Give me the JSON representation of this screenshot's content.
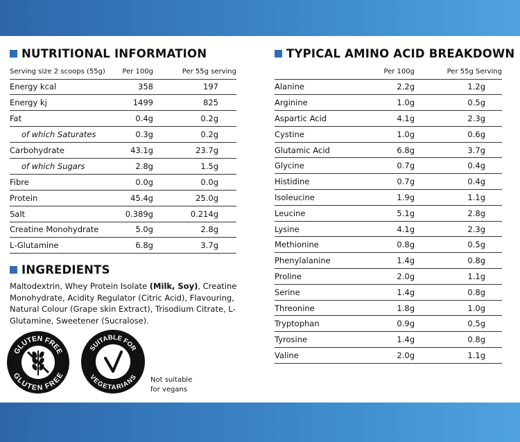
{
  "nutrition": {
    "title": "NUTRITIONAL INFORMATION",
    "header": {
      "serving": "Serving size 2 scoops (55g)",
      "per100": "Per 100g",
      "perServing": "Per 55g serving"
    },
    "rows": [
      {
        "label": "Energy kcal",
        "per100": "358",
        "perServing": "197",
        "sub": false
      },
      {
        "label": "Energy kj",
        "per100": "1499",
        "perServing": "825",
        "sub": false
      },
      {
        "label": "Fat",
        "per100": "0.4g",
        "perServing": "0.2g",
        "sub": false
      },
      {
        "label": "of which Saturates",
        "per100": "0.3g",
        "perServing": "0.2g",
        "sub": true
      },
      {
        "label": "Carbohydrate",
        "per100": "43.1g",
        "perServing": "23.7g",
        "sub": false
      },
      {
        "label": "of which Sugars",
        "per100": "2.8g",
        "perServing": "1.5g",
        "sub": true
      },
      {
        "label": "Fibre",
        "per100": "0.0g",
        "perServing": "0.0g",
        "sub": false
      },
      {
        "label": "Protein",
        "per100": "45.4g",
        "perServing": "25.0g",
        "sub": false
      },
      {
        "label": "Salt",
        "per100": "0.389g",
        "perServing": "0.214g",
        "sub": false
      },
      {
        "label": "Creatine Monohydrate",
        "per100": "5.0g",
        "perServing": "2.8g",
        "sub": false
      },
      {
        "label": "L-Glutamine",
        "per100": "6.8g",
        "perServing": "3.7g",
        "sub": false
      }
    ]
  },
  "amino": {
    "title": "TYPICAL AMINO ACID BREAKDOWN",
    "header": {
      "per100": "Per 100g",
      "perServing": "Per 55g Serving"
    },
    "rows": [
      {
        "label": "Alanine",
        "per100": "2.2g",
        "perServing": "1.2g"
      },
      {
        "label": "Arginine",
        "per100": "1.0g",
        "perServing": "0.5g"
      },
      {
        "label": "Aspartic Acid",
        "per100": "4.1g",
        "perServing": "2.3g"
      },
      {
        "label": "Cystine",
        "per100": "1.0g",
        "perServing": "0.6g"
      },
      {
        "label": "Glutamic Acid",
        "per100": "6.8g",
        "perServing": "3.7g"
      },
      {
        "label": "Glycine",
        "per100": "0.7g",
        "perServing": "0.4g"
      },
      {
        "label": "Histidine",
        "per100": "0.7g",
        "perServing": "0.4g"
      },
      {
        "label": "Isoleucine",
        "per100": "1.9g",
        "perServing": "1.1g"
      },
      {
        "label": "Leucine",
        "per100": "5.1g",
        "perServing": "2.8g"
      },
      {
        "label": "Lysine",
        "per100": "4.1g",
        "perServing": "2.3g"
      },
      {
        "label": "Methionine",
        "per100": "0.8g",
        "perServing": "0.5g"
      },
      {
        "label": "Phenylalanine",
        "per100": "1.4g",
        "perServing": "0.8g"
      },
      {
        "label": "Proline",
        "per100": "2.0g",
        "perServing": "1.1g"
      },
      {
        "label": "Serine",
        "per100": "1.4g",
        "perServing": "0.8g"
      },
      {
        "label": "Threonine",
        "per100": "1.8g",
        "perServing": "1.0g"
      },
      {
        "label": "Tryptophan",
        "per100": "0.9g",
        "perServing": "0.5g"
      },
      {
        "label": "Tyrosine",
        "per100": "1.4g",
        "perServing": "0.8g"
      },
      {
        "label": "Valine",
        "per100": "2.0g",
        "perServing": "1.1g"
      }
    ]
  },
  "ingredients": {
    "title": "INGREDIENTS",
    "text_before": "Maltodextrin, Whey Protein Isolate ",
    "allergens": "(Milk, Soy)",
    "text_after": ", Creatine Monohydrate, Acidity Regulator (Citric Acid), Flavouring, Natural Colour (Grape skin Extract), Trisodium Citrate, L-Glutamine, Sweetener (Sucralose)."
  },
  "badges": {
    "gluten_free": {
      "top": "GLUTEN FREE",
      "bottom": "GLUTEN FREE",
      "icon": "wheat-crossed-icon"
    },
    "vegetarian": {
      "top": "SUITABLE FOR",
      "bottom": "VEGETARIANS",
      "icon": "checkmark-icon"
    },
    "vegan_note_line1": "Not suitable",
    "vegan_note_line2": "for vegans"
  },
  "colors": {
    "accent": "#2f6db3",
    "band": "#3b86c9"
  }
}
